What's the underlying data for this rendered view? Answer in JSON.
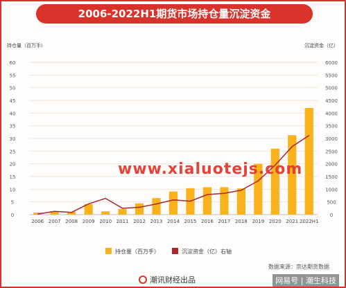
{
  "header": {
    "title": "2006-2022H1期货市场持仓量沉淀资金"
  },
  "chart_data": {
    "type": "bar",
    "categories": [
      "2006",
      "2007",
      "2008",
      "2009",
      "2010",
      "2011",
      "2012",
      "2013",
      "2014",
      "2015",
      "2016",
      "2017",
      "2018",
      "2019",
      "2020",
      "2021",
      "2022H1"
    ],
    "series": [
      {
        "name": "持仓量（百万手）",
        "kind": "bar",
        "axis": "left",
        "color": "#f7b21c",
        "values": [
          0.8,
          1.3,
          1.1,
          4.1,
          1.3,
          2.2,
          4.4,
          6.5,
          9.1,
          10.4,
          10.8,
          10.8,
          10.3,
          20.0,
          26.0,
          31.3,
          42.0
        ]
      },
      {
        "name": "沉淀资金（亿）右轴",
        "kind": "line",
        "axis": "right",
        "color": "#a8262c",
        "values": [
          20,
          130,
          90,
          420,
          640,
          250,
          290,
          420,
          580,
          530,
          790,
          840,
          960,
          1330,
          1950,
          2680,
          3120
        ]
      }
    ],
    "ylabel_left": "持仓量（百万手）",
    "ylabel_right": "沉淀资金（亿）",
    "ylim_left": [
      0,
      60
    ],
    "ylim_right": [
      0,
      6000
    ],
    "yticks_left": [
      "0",
      "5",
      "10",
      "15",
      "20",
      "25",
      "30",
      "35",
      "40",
      "45",
      "50",
      "55",
      "60"
    ],
    "yticks_right": [
      "0",
      "500",
      "1000",
      "1500",
      "2000",
      "2500",
      "3000",
      "3500",
      "4000",
      "4500",
      "5000",
      "5500",
      "6000"
    ],
    "grid": true,
    "legend_position": "bottom"
  },
  "source_text": "数据来源：宗达期货数据",
  "footer": {
    "brand": "潮讯财经出品"
  },
  "watermarks": {
    "site": "www.xialuotejs.com",
    "account": "网易号 | 潮生科技"
  },
  "colors": {
    "accent": "#d8322b",
    "bar": "#f7b21c",
    "line": "#a8262c"
  }
}
